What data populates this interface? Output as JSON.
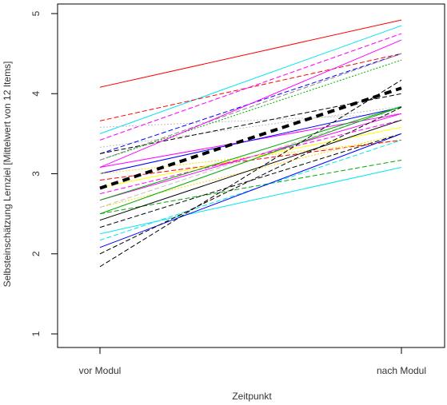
{
  "chart_data": {
    "type": "line",
    "xlabel": "Zeitpunkt",
    "ylabel": "Selbsteinschätzung Lernziel [Mittelwert von 12 Items]",
    "categories": [
      "vor Modul",
      "nach Modul"
    ],
    "ylim": [
      1,
      5
    ],
    "yticks": [
      1,
      2,
      3,
      4,
      5
    ],
    "grid": false,
    "legend": "none",
    "mean_line": {
      "values": [
        2.82,
        4.07
      ],
      "color": "#000000",
      "dash": "dashed-bold"
    },
    "series": [
      {
        "values": [
          4.08,
          4.92
        ],
        "color": "#ff0000",
        "dash": "solid"
      },
      {
        "values": [
          3.5,
          4.85
        ],
        "color": "#00e5ee",
        "dash": "solid"
      },
      {
        "values": [
          3.66,
          4.5
        ],
        "color": "#ff0000",
        "dash": "dashed"
      },
      {
        "values": [
          3.58,
          3.75
        ],
        "color": "#c0c0c0",
        "dash": "dotted"
      },
      {
        "values": [
          3.42,
          4.75
        ],
        "color": "#ff00ff",
        "dash": "dashed"
      },
      {
        "values": [
          3.33,
          3.84
        ],
        "color": "#c0c0c0",
        "dash": "dotted"
      },
      {
        "values": [
          3.25,
          4.5
        ],
        "color": "#0000ff",
        "dash": "dashed"
      },
      {
        "values": [
          3.25,
          4.0
        ],
        "color": "#000000",
        "dash": "dashed"
      },
      {
        "values": [
          3.17,
          4.42
        ],
        "color": "#00aa00",
        "dash": "dotted"
      },
      {
        "values": [
          3.17,
          4.5
        ],
        "color": "#808080",
        "dash": "dashed"
      },
      {
        "values": [
          3.08,
          4.67
        ],
        "color": "#ff00ff",
        "dash": "solid"
      },
      {
        "values": [
          3.08,
          3.75
        ],
        "color": "#ff00ff",
        "dash": "solid"
      },
      {
        "values": [
          3.0,
          3.83
        ],
        "color": "#0000ff",
        "dash": "solid"
      },
      {
        "values": [
          3.0,
          3.42
        ],
        "color": "#ffd700",
        "dash": "dotted"
      },
      {
        "values": [
          2.92,
          3.42
        ],
        "color": "#ff0000",
        "dash": "dashed"
      },
      {
        "values": [
          2.83,
          3.58
        ],
        "color": "#ffff00",
        "dash": "solid"
      },
      {
        "values": [
          2.75,
          3.67
        ],
        "color": "#ff00ff",
        "dash": "dashed"
      },
      {
        "values": [
          2.67,
          3.75
        ],
        "color": "#ff00ff",
        "dash": "solid"
      },
      {
        "values": [
          2.67,
          3.84
        ],
        "color": "#00aa00",
        "dash": "solid"
      },
      {
        "values": [
          2.58,
          3.5
        ],
        "color": "#ffd700",
        "dash": "dotted"
      },
      {
        "values": [
          2.58,
          3.83
        ],
        "color": "#c0c0c0",
        "dash": "dashed"
      },
      {
        "values": [
          2.5,
          3.17
        ],
        "color": "#00aa00",
        "dash": "dashed"
      },
      {
        "values": [
          2.5,
          3.84
        ],
        "color": "#00aa00",
        "dash": "solid"
      },
      {
        "values": [
          2.42,
          3.67
        ],
        "color": "#000000",
        "dash": "solid"
      },
      {
        "values": [
          2.33,
          3.5
        ],
        "color": "#000000",
        "dash": "dashed"
      },
      {
        "values": [
          2.25,
          3.08
        ],
        "color": "#00e5ee",
        "dash": "solid"
      },
      {
        "values": [
          2.17,
          3.42
        ],
        "color": "#00e5ee",
        "dash": "dashed"
      },
      {
        "values": [
          2.08,
          3.5
        ],
        "color": "#0000ff",
        "dash": "solid"
      },
      {
        "values": [
          2.0,
          3.83
        ],
        "color": "#000000",
        "dash": "dashed"
      },
      {
        "values": [
          1.84,
          4.17
        ],
        "color": "#000000",
        "dash": "dashed"
      }
    ]
  }
}
